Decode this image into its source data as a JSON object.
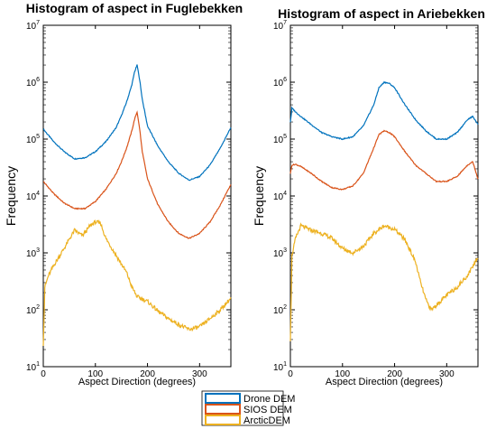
{
  "legend": [
    {
      "label": "Drone DEM",
      "color": "#0072BD"
    },
    {
      "label": "SIOS DEM",
      "color": "#D95319"
    },
    {
      "label": "ArcticDEM",
      "color": "#EDB120"
    }
  ],
  "chart_data": [
    {
      "type": "line",
      "title": "Histogram of aspect in Fuglebekken",
      "xlabel": "Aspect Direction (degrees)",
      "ylabel": "Frequency",
      "xlim": [
        0,
        360
      ],
      "ylim": [
        10,
        10000000
      ],
      "yscale": "log",
      "xticks": [
        "0",
        "100",
        "200",
        "300"
      ],
      "yticks": [
        "10^1",
        "10^2",
        "10^3",
        "10^4",
        "10^5",
        "10^6",
        "10^7"
      ],
      "grid": false,
      "series": [
        {
          "name": "Drone DEM",
          "color": "#0072BD",
          "x": [
            0,
            20,
            40,
            60,
            80,
            100,
            120,
            140,
            150,
            160,
            170,
            175,
            180,
            185,
            190,
            200,
            220,
            240,
            260,
            280,
            300,
            320,
            340,
            360
          ],
          "y": [
            150000,
            90000,
            60000,
            45000,
            47000,
            60000,
            90000,
            160000,
            260000,
            450000,
            900000,
            1500000,
            2000000,
            1100000,
            500000,
            170000,
            75000,
            40000,
            25000,
            19000,
            22000,
            35000,
            70000,
            160000
          ]
        },
        {
          "name": "SIOS DEM",
          "color": "#D95319",
          "x": [
            0,
            20,
            40,
            60,
            80,
            100,
            120,
            140,
            150,
            160,
            170,
            175,
            180,
            185,
            190,
            200,
            220,
            240,
            260,
            280,
            300,
            320,
            340,
            360
          ],
          "y": [
            18000,
            11000,
            7500,
            6000,
            6000,
            8000,
            13000,
            25000,
            40000,
            70000,
            140000,
            220000,
            300000,
            150000,
            60000,
            20000,
            7000,
            3500,
            2200,
            1800,
            2200,
            3500,
            7000,
            16000
          ]
        },
        {
          "name": "ArcticDEM",
          "color": "#EDB120",
          "x": [
            0,
            3,
            10,
            20,
            40,
            60,
            75,
            90,
            100,
            110,
            120,
            140,
            160,
            170,
            180,
            200,
            220,
            240,
            260,
            280,
            300,
            320,
            340,
            360
          ],
          "y": [
            25,
            250,
            400,
            600,
            1200,
            2500,
            2000,
            3000,
            3500,
            3300,
            1800,
            900,
            450,
            250,
            170,
            140,
            95,
            70,
            55,
            45,
            50,
            70,
            100,
            160
          ]
        }
      ]
    },
    {
      "type": "line",
      "title": "Histogram of aspect in Ariebekken",
      "xlabel": "Aspect Direction (degrees)",
      "ylabel": "Frequency",
      "xlim": [
        0,
        360
      ],
      "ylim": [
        10,
        10000000
      ],
      "yscale": "log",
      "xticks": [
        "0",
        "100",
        "200",
        "300"
      ],
      "yticks": [
        "10^1",
        "10^2",
        "10^3",
        "10^4",
        "10^5",
        "10^6",
        "10^7"
      ],
      "grid": false,
      "series": [
        {
          "name": "Drone DEM",
          "color": "#0072BD",
          "x": [
            0,
            3,
            10,
            20,
            40,
            60,
            80,
            100,
            120,
            140,
            160,
            170,
            180,
            190,
            200,
            220,
            240,
            260,
            280,
            300,
            320,
            340,
            350,
            360
          ],
          "y": [
            200000,
            350000,
            300000,
            250000,
            180000,
            130000,
            110000,
            100000,
            110000,
            170000,
            400000,
            800000,
            1000000,
            950000,
            800000,
            400000,
            220000,
            140000,
            100000,
            100000,
            130000,
            220000,
            250000,
            180000
          ]
        },
        {
          "name": "SIOS DEM",
          "color": "#D95319",
          "x": [
            0,
            3,
            10,
            20,
            40,
            60,
            80,
            100,
            120,
            140,
            160,
            170,
            180,
            190,
            200,
            220,
            240,
            260,
            280,
            300,
            320,
            340,
            350,
            360
          ],
          "y": [
            25000,
            35000,
            36000,
            33000,
            25000,
            18000,
            14000,
            13000,
            15000,
            25000,
            70000,
            120000,
            140000,
            130000,
            110000,
            60000,
            35000,
            25000,
            18000,
            18000,
            22000,
            35000,
            40000,
            20000
          ]
        },
        {
          "name": "ArcticDEM",
          "color": "#EDB120",
          "x": [
            0,
            3,
            10,
            20,
            40,
            60,
            80,
            100,
            120,
            140,
            160,
            180,
            200,
            220,
            240,
            250,
            260,
            270,
            280,
            300,
            320,
            340,
            360
          ],
          "y": [
            30,
            900,
            1800,
            3000,
            2500,
            2200,
            1800,
            1200,
            1000,
            1300,
            2200,
            3000,
            2600,
            1700,
            700,
            300,
            150,
            100,
            120,
            180,
            250,
            400,
            850
          ]
        }
      ]
    }
  ]
}
